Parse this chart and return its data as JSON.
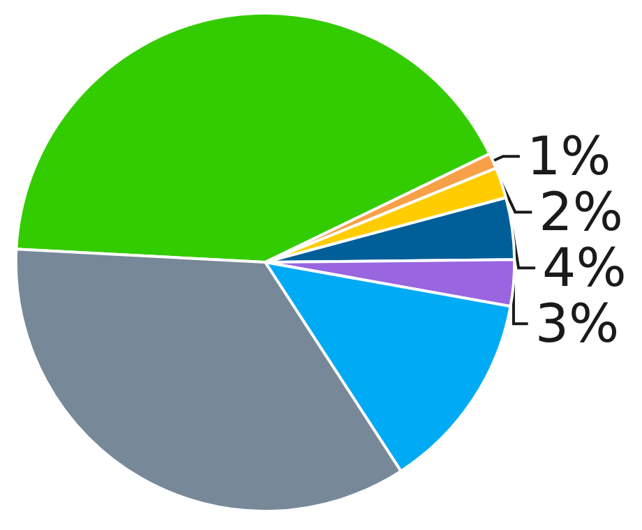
{
  "chart_data": {
    "type": "pie",
    "categories": [
      null,
      null,
      null,
      null,
      null,
      null,
      null
    ],
    "values": [
      42,
      1,
      2,
      4,
      3,
      13,
      35
    ],
    "colors": [
      "#33cc00",
      "#f7a047",
      "#ffcc00",
      "#005f99",
      "#9966e0",
      "#00aaf5",
      "#778899"
    ],
    "value_labels": [
      null,
      "1%",
      "2%",
      "4%",
      "3%",
      null,
      null
    ]
  }
}
